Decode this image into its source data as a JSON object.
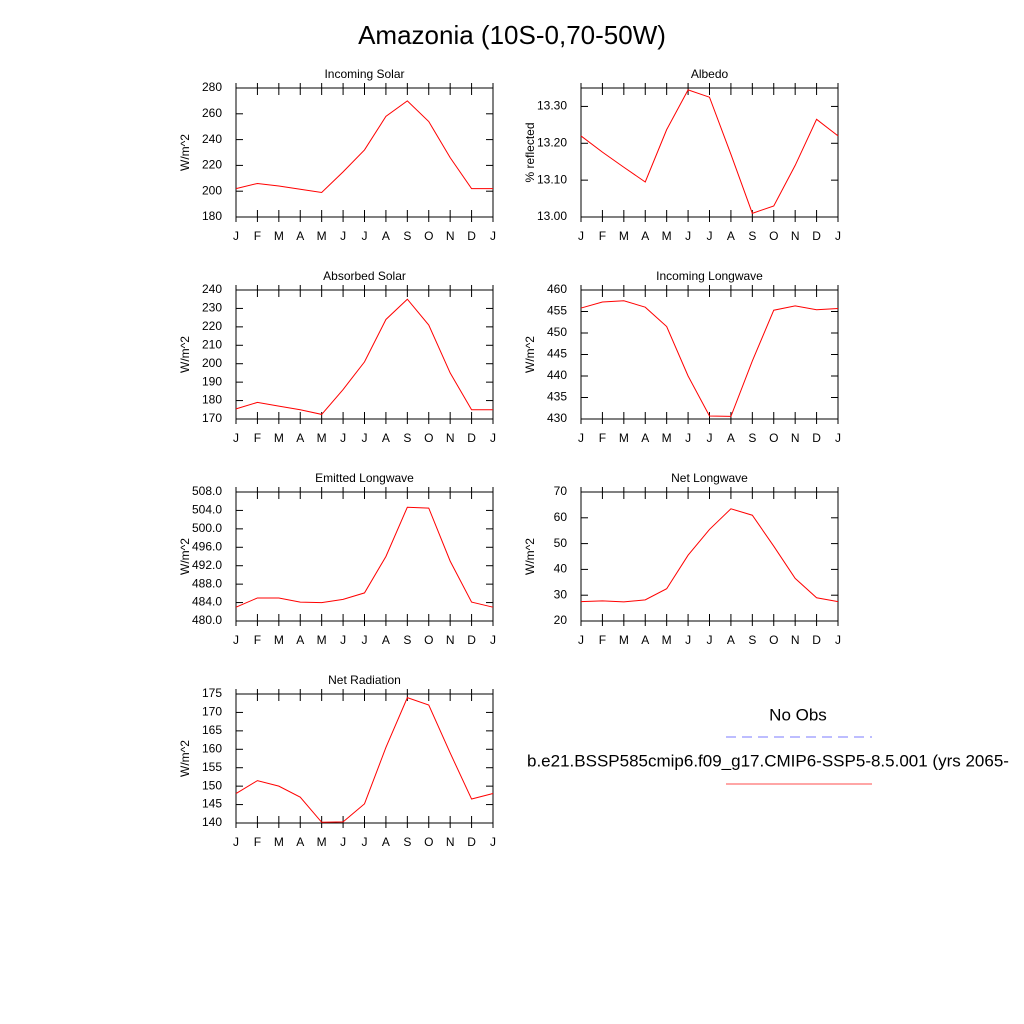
{
  "title": "Amazonia (10S-0,70-50W)",
  "legend": [
    {
      "name": "No Obs",
      "color": "#7b7bff",
      "dashed": true
    },
    {
      "name": "b.e21.BSSP585cmip6.f09_g17.CMIP6-SSP5-8.5.001 (yrs 2065-",
      "color": "#ff4d4d",
      "dashed": false
    }
  ],
  "chart_data": [
    {
      "type": "line",
      "title": "Incoming Solar",
      "ylabel": "W/m^2",
      "color": "#ff0000",
      "categories": [
        "J",
        "F",
        "M",
        "A",
        "M",
        "J",
        "J",
        "A",
        "S",
        "O",
        "N",
        "D",
        "J"
      ],
      "values": [
        202,
        206,
        204,
        201.5,
        199,
        215,
        232,
        258,
        270,
        254,
        226,
        202,
        202
      ],
      "ylim": [
        180,
        280
      ],
      "yticks": [
        180,
        200,
        220,
        240,
        260,
        280
      ]
    },
    {
      "type": "line",
      "title": "Albedo",
      "ylabel": "% reflected",
      "color": "#ff0000",
      "categories": [
        "J",
        "F",
        "M",
        "A",
        "M",
        "J",
        "J",
        "A",
        "S",
        "O",
        "N",
        "D",
        "J"
      ],
      "values": [
        13.22,
        13.176,
        13.135,
        13.095,
        13.237,
        13.345,
        13.325,
        13.17,
        13.01,
        13.03,
        13.14,
        13.265,
        13.22
      ],
      "ylim": [
        13.0,
        13.35
      ],
      "yticks": [
        {
          "value": 13.0,
          "label": "13.00"
        },
        {
          "value": 13.1,
          "label": "13.10"
        },
        {
          "value": 13.2,
          "label": "13.20"
        },
        {
          "value": 13.3,
          "label": "13.30"
        }
      ]
    },
    {
      "type": "line",
      "title": "Absorbed Solar",
      "ylabel": "W/m^2",
      "color": "#ff0000",
      "categories": [
        "J",
        "F",
        "M",
        "A",
        "M",
        "J",
        "J",
        "A",
        "S",
        "O",
        "N",
        "D",
        "J"
      ],
      "values": [
        175.5,
        179,
        177,
        175,
        172.5,
        186,
        201,
        224,
        235,
        221,
        195,
        175,
        175
      ],
      "ylim": [
        170,
        240
      ],
      "yticks": [
        170,
        180,
        190,
        200,
        210,
        220,
        230,
        240
      ]
    },
    {
      "type": "line",
      "title": "Incoming Longwave",
      "ylabel": "W/m^2",
      "color": "#ff0000",
      "categories": [
        "J",
        "F",
        "M",
        "A",
        "M",
        "J",
        "J",
        "A",
        "S",
        "O",
        "N",
        "D",
        "J"
      ],
      "values": [
        455.8,
        457.2,
        457.5,
        456,
        451.5,
        440,
        430.7,
        430.6,
        443.5,
        455.3,
        456.3,
        455.4,
        455.7
      ],
      "ylim": [
        430,
        460
      ],
      "yticks": [
        430,
        435,
        440,
        445,
        450,
        455,
        460
      ]
    },
    {
      "type": "line",
      "title": "Emitted Longwave",
      "ylabel": "W/m^2",
      "color": "#ff0000",
      "categories": [
        "J",
        "F",
        "M",
        "A",
        "M",
        "J",
        "J",
        "A",
        "S",
        "O",
        "N",
        "D",
        "J"
      ],
      "values": [
        483,
        485,
        485,
        484.1,
        484,
        484.7,
        486.1,
        494,
        504.7,
        504.5,
        493,
        484.1,
        483
      ],
      "ylim": [
        480,
        508
      ],
      "yticks": [
        {
          "value": 480,
          "label": "480.0"
        },
        {
          "value": 484,
          "label": "484.0"
        },
        {
          "value": 488,
          "label": "488.0"
        },
        {
          "value": 492,
          "label": "492.0"
        },
        {
          "value": 496,
          "label": "496.0"
        },
        {
          "value": 500,
          "label": "500.0"
        },
        {
          "value": 504,
          "label": "504.0"
        },
        {
          "value": 508,
          "label": "508.0"
        }
      ]
    },
    {
      "type": "line",
      "title": "Net Longwave",
      "ylabel": "W/m^2",
      "color": "#ff0000",
      "categories": [
        "J",
        "F",
        "M",
        "A",
        "M",
        "J",
        "J",
        "A",
        "S",
        "O",
        "N",
        "D",
        "J"
      ],
      "values": [
        27.5,
        27.8,
        27.4,
        28.2,
        32.5,
        45.5,
        55.5,
        63.5,
        61,
        49,
        36.5,
        29,
        27.5
      ],
      "ylim": [
        20,
        70
      ],
      "yticks": [
        20,
        30,
        40,
        50,
        60,
        70
      ]
    },
    {
      "type": "line",
      "title": "Net Radiation",
      "ylabel": "W/m^2",
      "color": "#ff0000",
      "categories": [
        "J",
        "F",
        "M",
        "A",
        "M",
        "J",
        "J",
        "A",
        "S",
        "O",
        "N",
        "D",
        "J"
      ],
      "values": [
        148,
        151.5,
        150,
        147,
        140.2,
        140.3,
        145.2,
        160.5,
        174,
        172,
        159,
        146.5,
        148
      ],
      "ylim": [
        140,
        175
      ],
      "yticks": [
        140,
        145,
        150,
        155,
        160,
        165,
        170,
        175
      ]
    }
  ]
}
